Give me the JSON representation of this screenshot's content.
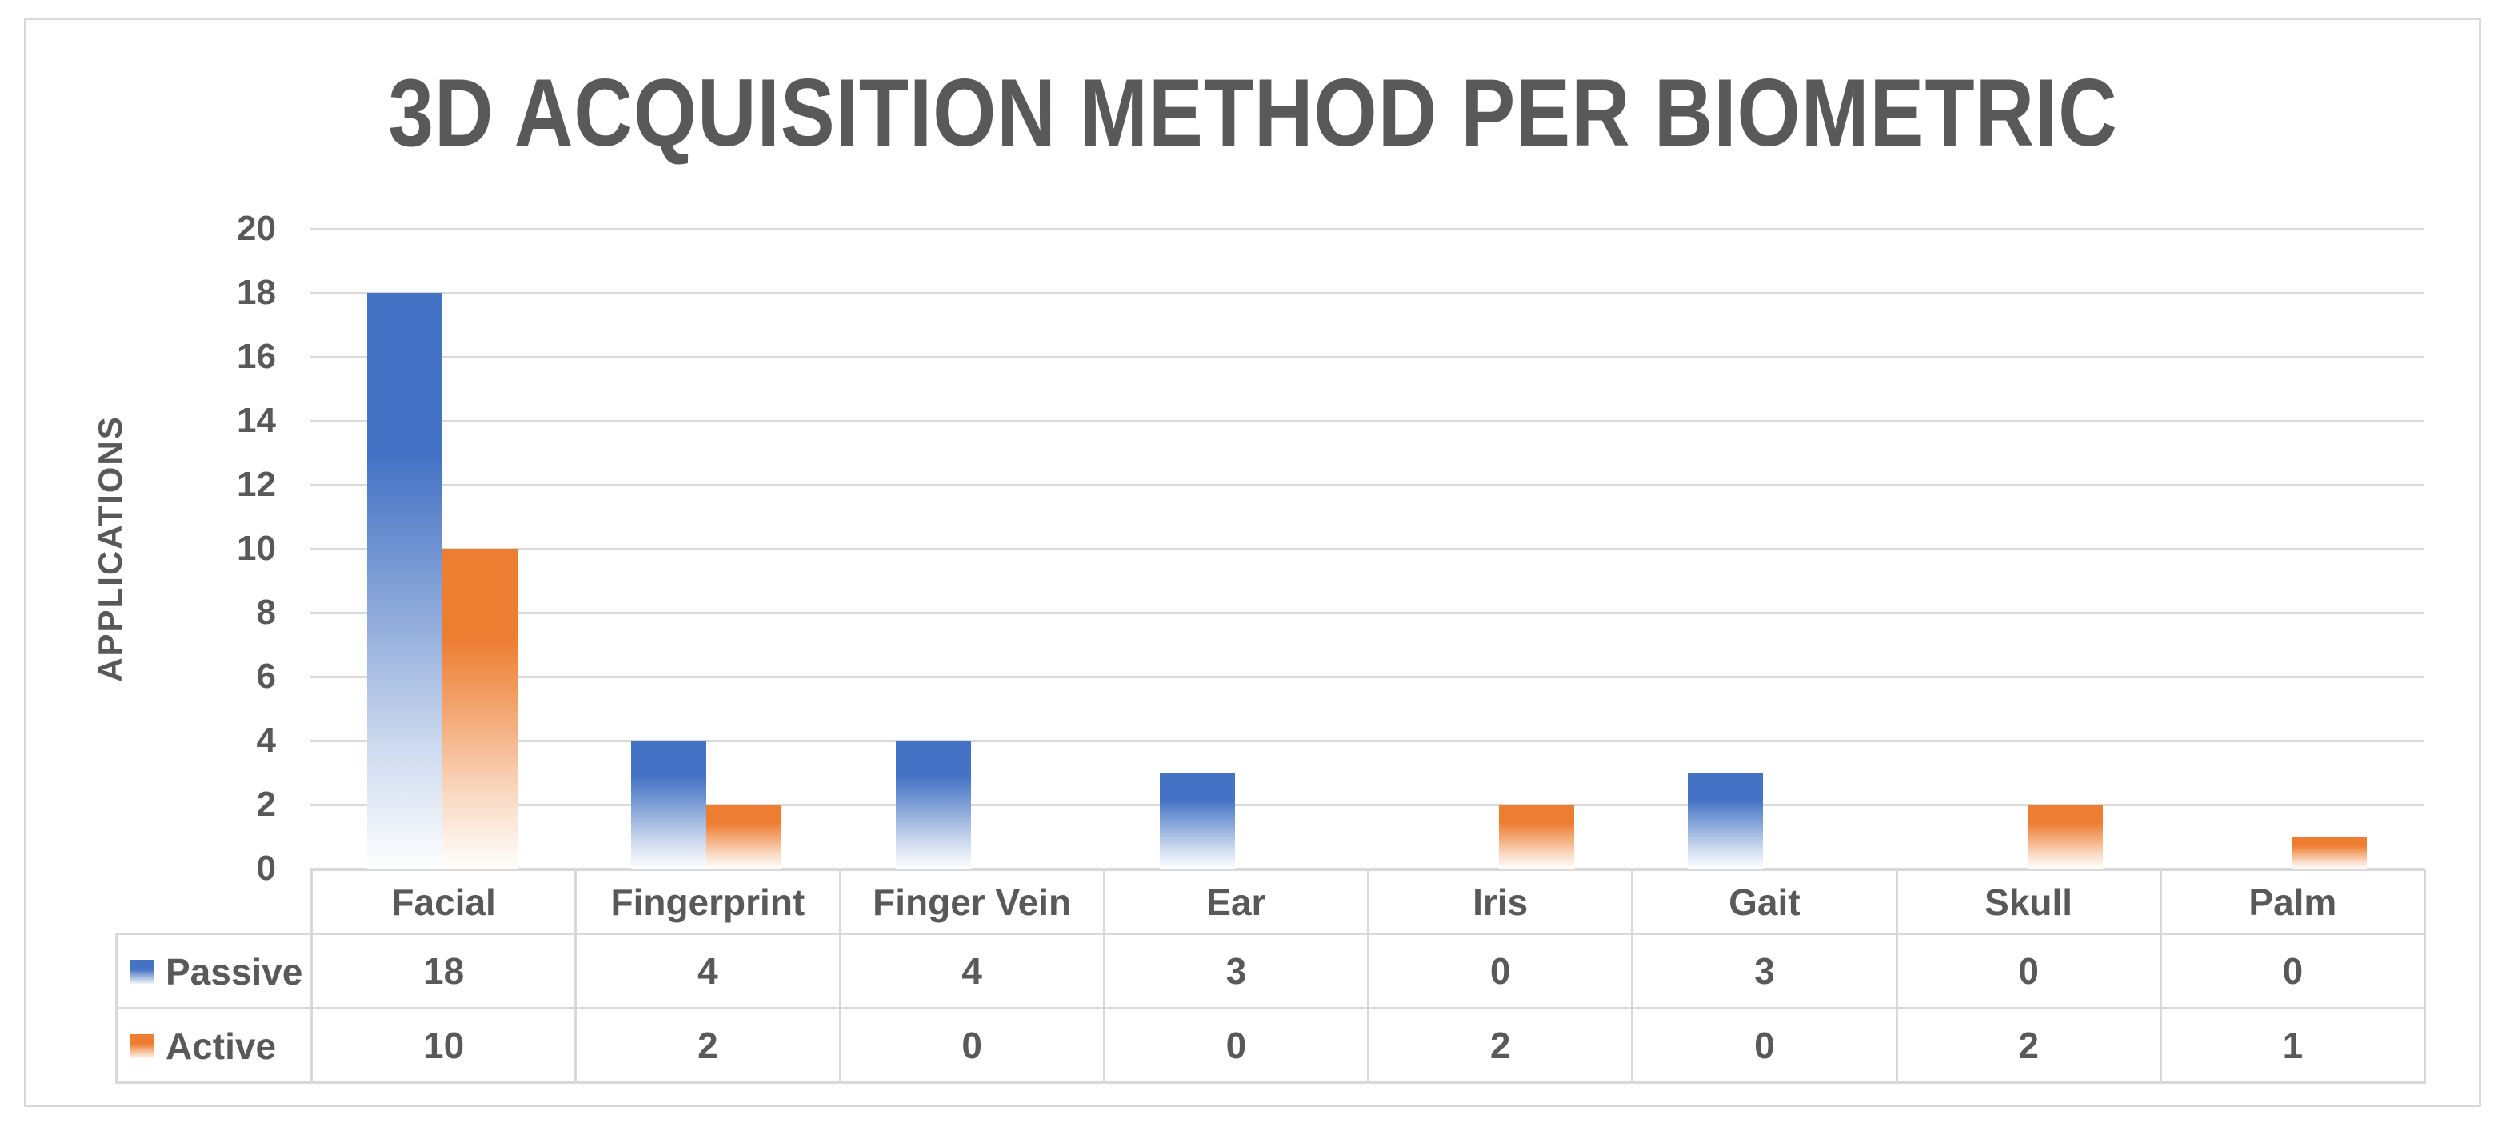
{
  "chart_data": {
    "type": "bar",
    "title": "3D ACQUISITION METHOD PER BIOMETRIC",
    "xlabel": "",
    "ylabel": "APPLICATIONS",
    "ylim": [
      0,
      20
    ],
    "ytick_interval": 2,
    "yticks": [
      0,
      2,
      4,
      6,
      8,
      10,
      12,
      14,
      16,
      18,
      20
    ],
    "grid": true,
    "bar_style": "vertical gradient fading to white at bar bottom",
    "legend_position": "data-table row headers (bottom left)",
    "categories": [
      "Facial",
      "Fingerprint",
      "Finger Vein",
      "Ear",
      "Iris",
      "Gait",
      "Skull",
      "Palm"
    ],
    "series": [
      {
        "name": "Passive",
        "color": "#4472C4",
        "values": [
          18,
          4,
          4,
          3,
          0,
          3,
          0,
          0
        ]
      },
      {
        "name": "Active",
        "color": "#ED7D31",
        "values": [
          10,
          2,
          0,
          0,
          2,
          0,
          2,
          1
        ]
      }
    ]
  }
}
